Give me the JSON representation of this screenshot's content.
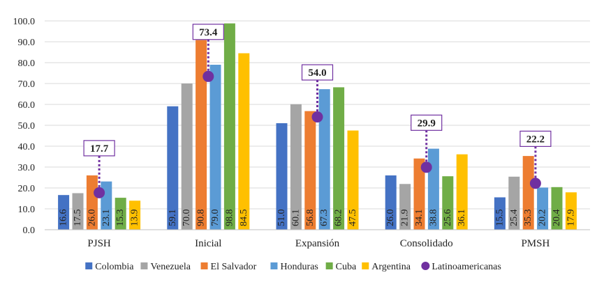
{
  "chart_data": {
    "type": "bar",
    "title": "",
    "xlabel": "",
    "ylabel": "",
    "ylim": [
      0,
      100
    ],
    "yticks": [
      "0.0",
      "10.0",
      "20.0",
      "30.0",
      "40.0",
      "50.0",
      "60.0",
      "70.0",
      "80.0",
      "90.0",
      "100.0"
    ],
    "grid": true,
    "categories": [
      "PJSH",
      "Inicial",
      "Expansión",
      "Consolidado",
      "PMSH"
    ],
    "series": [
      {
        "name": "Colombia",
        "color": "#4472C4",
        "values": [
          16.6,
          59.1,
          51.0,
          26.0,
          15.5
        ],
        "labels": [
          "16.6",
          "59.1",
          "51.0",
          "26.0",
          "15.5"
        ]
      },
      {
        "name": "Venezuela",
        "color": "#A5A5A5",
        "values": [
          17.5,
          70.0,
          60.1,
          21.9,
          25.4
        ],
        "labels": [
          "17.5",
          "70.0",
          "60.1",
          "21.9",
          "25.4"
        ]
      },
      {
        "name": "El Salvador",
        "color": "#ED7D31",
        "values": [
          26.0,
          90.8,
          56.8,
          34.1,
          35.3
        ],
        "labels": [
          "26.0",
          "90.8",
          "56.8",
          "34.1",
          "35.3"
        ]
      },
      {
        "name": "Honduras",
        "color": "#5B9BD5",
        "values": [
          23.1,
          79.0,
          67.3,
          38.8,
          20.2
        ],
        "labels": [
          "23.1",
          "79.0",
          "67.3",
          "38.8",
          "20.2"
        ]
      },
      {
        "name": "Cuba",
        "color": "#70AD47",
        "values": [
          15.3,
          98.8,
          68.2,
          25.6,
          20.4
        ],
        "labels": [
          "15.3",
          "98.8",
          "68.2",
          "25.6",
          "20.4"
        ]
      },
      {
        "name": "Argentina",
        "color": "#FFC000",
        "values": [
          13.9,
          84.5,
          47.5,
          36.1,
          17.9
        ],
        "labels": [
          "13.9",
          "84.5",
          "47.5",
          "36.1",
          "17.9"
        ]
      }
    ],
    "overlay": {
      "name": "Latinoamericanas",
      "type": "scatter",
      "color": "#7030A0",
      "values": [
        17.7,
        73.4,
        54.0,
        29.9,
        22.2
      ],
      "labels": [
        "17.7",
        "73.4",
        "54.0",
        "29.9",
        "22.2"
      ]
    },
    "legend": {
      "position": "bottom"
    }
  }
}
